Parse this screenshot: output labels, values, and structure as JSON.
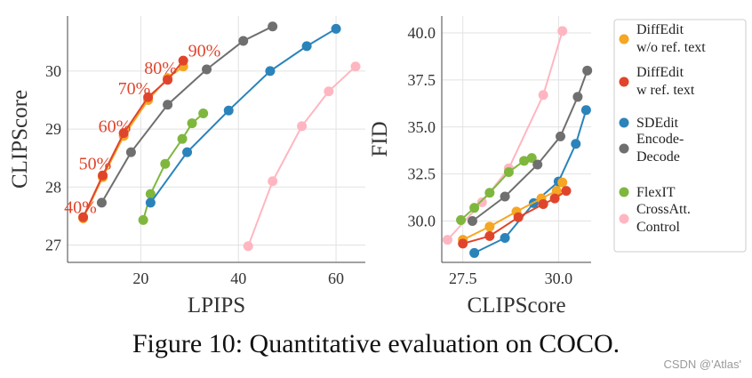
{
  "caption": "Figure 10:  Quantitative evaluation on COCO.",
  "watermark": "CSDN @'Atlas'",
  "legend": [
    {
      "key": "diffedit_wo",
      "lines": [
        "DiffEdit",
        "w/o ref. text"
      ],
      "color": "#f5a623"
    },
    {
      "key": "diffedit_w",
      "lines": [
        "DiffEdit",
        "w ref. text"
      ],
      "color": "#e0452c"
    },
    {
      "key": "sdedit",
      "lines": [
        "SDEdit"
      ],
      "color": "#2b83ba"
    },
    {
      "key": "encode_decode",
      "lines": [
        "Encode-",
        "Decode"
      ],
      "color": "#6f6f6f"
    },
    {
      "key": "flexit",
      "lines": [
        "FlexIT"
      ],
      "color": "#7fb73e"
    },
    {
      "key": "crossatt",
      "lines": [
        "CrossAtt.",
        "Control"
      ],
      "color": "#ffb6c1"
    }
  ],
  "chart_data": [
    {
      "type": "line",
      "title": "",
      "xlabel": "LPIPS",
      "ylabel": "CLIPScore",
      "xlim": [
        5,
        66
      ],
      "ylim": [
        26.7,
        30.95
      ],
      "xticks": [
        20,
        40,
        60
      ],
      "yticks": [
        27,
        28,
        29,
        30
      ],
      "grid": true,
      "annotations": [
        {
          "text": "40%",
          "x": 4.3,
          "y": 27.55
        },
        {
          "text": "50%",
          "x": 7.3,
          "y": 28.3
        },
        {
          "text": "60%",
          "x": 11.3,
          "y": 28.95
        },
        {
          "text": "70%",
          "x": 15.3,
          "y": 29.6
        },
        {
          "text": "80%",
          "x": 20.7,
          "y": 29.95
        },
        {
          "text": "90%",
          "x": 29.7,
          "y": 30.25
        }
      ],
      "series": [
        {
          "name": "CrossAtt. Control",
          "key": "crossatt",
          "x": [
            42,
            47,
            53,
            58.5,
            64
          ],
          "y": [
            26.98,
            28.1,
            29.05,
            29.65,
            30.08
          ]
        },
        {
          "name": "FlexIT",
          "key": "flexit",
          "x": [
            20.5,
            22,
            25,
            28.5,
            30.5,
            32.8
          ],
          "y": [
            27.43,
            27.88,
            28.4,
            28.83,
            29.1,
            29.27
          ]
        },
        {
          "name": "SDEdit",
          "key": "sdedit",
          "x": [
            22,
            29.5,
            38,
            46.5,
            54,
            60
          ],
          "y": [
            27.73,
            28.6,
            29.32,
            30.0,
            30.43,
            30.73
          ]
        },
        {
          "name": "Encode-Decode",
          "key": "encode_decode",
          "x": [
            12,
            18,
            25.5,
            33.5,
            41,
            47
          ],
          "y": [
            27.73,
            28.6,
            29.42,
            30.03,
            30.52,
            30.77
          ]
        },
        {
          "name": "DiffEdit w/o ref. text",
          "key": "diffedit_wo",
          "x": [
            8.2,
            12.2,
            16.5,
            21.5,
            25.5,
            28.7
          ],
          "y": [
            27.46,
            28.17,
            28.88,
            29.5,
            29.88,
            30.08
          ]
        },
        {
          "name": "DiffEdit w ref. text",
          "key": "diffedit_w",
          "x": [
            8.2,
            12.2,
            16.5,
            21.5,
            25.5,
            28.7
          ],
          "y": [
            27.48,
            28.2,
            28.93,
            29.55,
            29.85,
            30.18
          ]
        }
      ]
    },
    {
      "type": "line",
      "title": "",
      "xlabel": "CLIPScore",
      "ylabel": "FID",
      "xlim": [
        26.95,
        30.85
      ],
      "ylim": [
        27.8,
        40.9
      ],
      "xticks": [
        27.5,
        30.0
      ],
      "yticks": [
        30.0,
        32.5,
        35.0,
        37.5,
        40.0
      ],
      "grid": true,
      "series": [
        {
          "name": "CrossAtt. Control",
          "key": "crossatt",
          "x": [
            27.1,
            28.0,
            28.7,
            29.6,
            30.1
          ],
          "y": [
            29.0,
            31.0,
            32.8,
            36.7,
            40.1
          ]
        },
        {
          "name": "FlexIT",
          "key": "flexit",
          "x": [
            27.45,
            27.8,
            28.2,
            28.7,
            29.1,
            29.3
          ],
          "y": [
            30.05,
            30.7,
            31.5,
            32.6,
            33.2,
            33.35
          ]
        },
        {
          "name": "SDEdit",
          "key": "sdedit",
          "x": [
            27.8,
            28.6,
            29.35,
            30.0,
            30.45,
            30.72
          ],
          "y": [
            28.3,
            29.1,
            30.95,
            32.1,
            34.1,
            35.9
          ]
        },
        {
          "name": "Encode-Decode",
          "key": "encode_decode",
          "x": [
            27.75,
            28.6,
            29.45,
            30.05,
            30.5,
            30.75
          ],
          "y": [
            30.0,
            31.3,
            33.0,
            34.5,
            36.6,
            38.0
          ]
        },
        {
          "name": "DiffEdit w/o ref. text",
          "key": "diffedit_wo",
          "x": [
            27.5,
            28.2,
            28.9,
            29.55,
            29.95,
            30.1
          ],
          "y": [
            29.0,
            29.7,
            30.5,
            31.2,
            31.6,
            32.05
          ]
        },
        {
          "name": "DiffEdit w ref. text",
          "key": "diffedit_w",
          "x": [
            27.5,
            28.2,
            28.95,
            29.6,
            29.9,
            30.2
          ],
          "y": [
            28.8,
            29.2,
            30.2,
            30.9,
            31.2,
            31.6
          ]
        }
      ]
    }
  ]
}
